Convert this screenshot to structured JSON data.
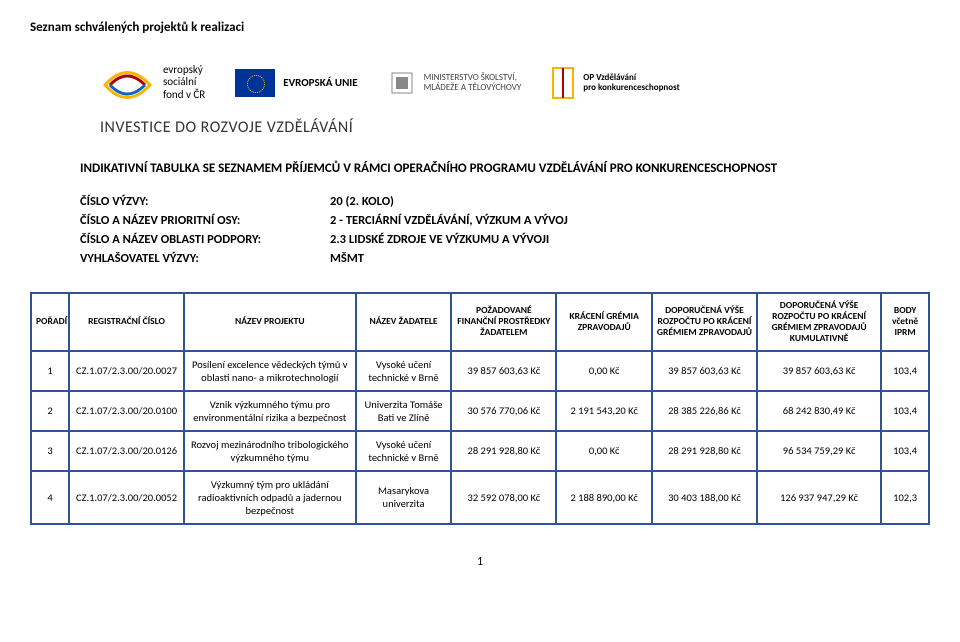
{
  "doc_header": "Seznam schválených projektů k realizaci",
  "invest_line": "INVESTICE DO ROZVOJE VZDĚLÁVÁNÍ",
  "title_line": "INDIKATIVNÍ TABULKA SE SEZNAMEM PŘÍJEMCŮ V RÁMCI OPERAČNÍHO PROGRAMU VZDĚLÁVÁNÍ PRO KONKURENCESCHOPNOST",
  "info": {
    "row1_label": "ČÍSLO VÝZVY:",
    "row1_value": "20 (2. KOLO)",
    "row2_label": "ČÍSLO A NÁZEV PRIORITNÍ OSY:",
    "row2_value": "2 - TERCIÁRNÍ VZDĚLÁVÁNÍ, VÝZKUM A VÝVOJ",
    "row3_label": "ČÍSLO A NÁZEV OBLASTI PODPORY:",
    "row3_value": "2.3 LIDSKÉ ZDROJE VE VÝZKUMU A VÝVOJI",
    "row4_label": "VYHLAŠOVATEL VÝZVY:",
    "row4_value": "MŠMT"
  },
  "logos": {
    "esf_line1": "evropský",
    "esf_line2": "sociální",
    "esf_line3": "fond v ČR",
    "eu_text": "EVROPSKÁ UNIE",
    "msmt_line1": "MINISTERSTVO ŠKOLSTVÍ,",
    "msmt_line2": "MLÁDEŽE A TĚLOVÝCHOVY",
    "op_line1": "OP Vzdělávání",
    "op_line2": "pro konkurenceschopnost"
  },
  "table": {
    "headers": [
      "POŘADÍ",
      "REGISTRAČNÍ ČÍSLO",
      "NÁZEV PROJEKTU",
      "NÁZEV ŽADATELE",
      "POŽADOVANÉ FINANČNÍ PROSTŘEDKY ŽADATELEM",
      "KRÁCENÍ GRÉMIA ZPRAVODAJŮ",
      "DOPORUČENÁ VÝŠE ROZPOČTU PO KRÁCENÍ GRÉMIEM ZPRAVODAJŮ",
      "DOPORUČENÁ VÝŠE ROZPOČTU PO KRÁCENÍ GRÉMIEM ZPRAVODAJŮ KUMULATIVNĚ",
      "BODY včetně IPRM"
    ],
    "rows": [
      [
        "1",
        "CZ.1.07/2.3.00/20.0027",
        "Posílení excelence vědeckých týmů v oblasti nano- a mikrotechnologií",
        "Vysoké učení technické v Brně",
        "39 857 603,63 Kč",
        "0,00 Kč",
        "39 857 603,63 Kč",
        "39 857 603,63 Kč",
        "103,4"
      ],
      [
        "2",
        "CZ.1.07/2.3.00/20.0100",
        "Vznik výzkumného týmu pro environmentální rizika a bezpečnost",
        "Univerzita Tomáše Bati ve Zlíně",
        "30 576 770,06 Kč",
        "2 191 543,20 Kč",
        "28 385 226,86 Kč",
        "68 242 830,49 Kč",
        "103,4"
      ],
      [
        "3",
        "CZ.1.07/2.3.00/20.0126",
        "Rozvoj mezinárodního tribologického výzkumného týmu",
        "Vysoké učení technické v Brně",
        "28 291 928,80 Kč",
        "0,00 Kč",
        "28 291 928,80 Kč",
        "96 534 759,29 Kč",
        "103,4"
      ],
      [
        "4",
        "CZ.1.07/2.3.00/20.0052",
        "Výzkumný tým pro ukládání radioaktivních odpadů a jadernou bezpečnost",
        "Masarykova univerzita",
        "32 592 078,00 Kč",
        "2 188 890,00 Kč",
        "30 403 188,00 Kč",
        "126 937 947,29 Kč",
        "102,3"
      ]
    ]
  },
  "page_number": "1",
  "colors": {
    "border": "#2f5496",
    "eu_bg": "#003399"
  }
}
